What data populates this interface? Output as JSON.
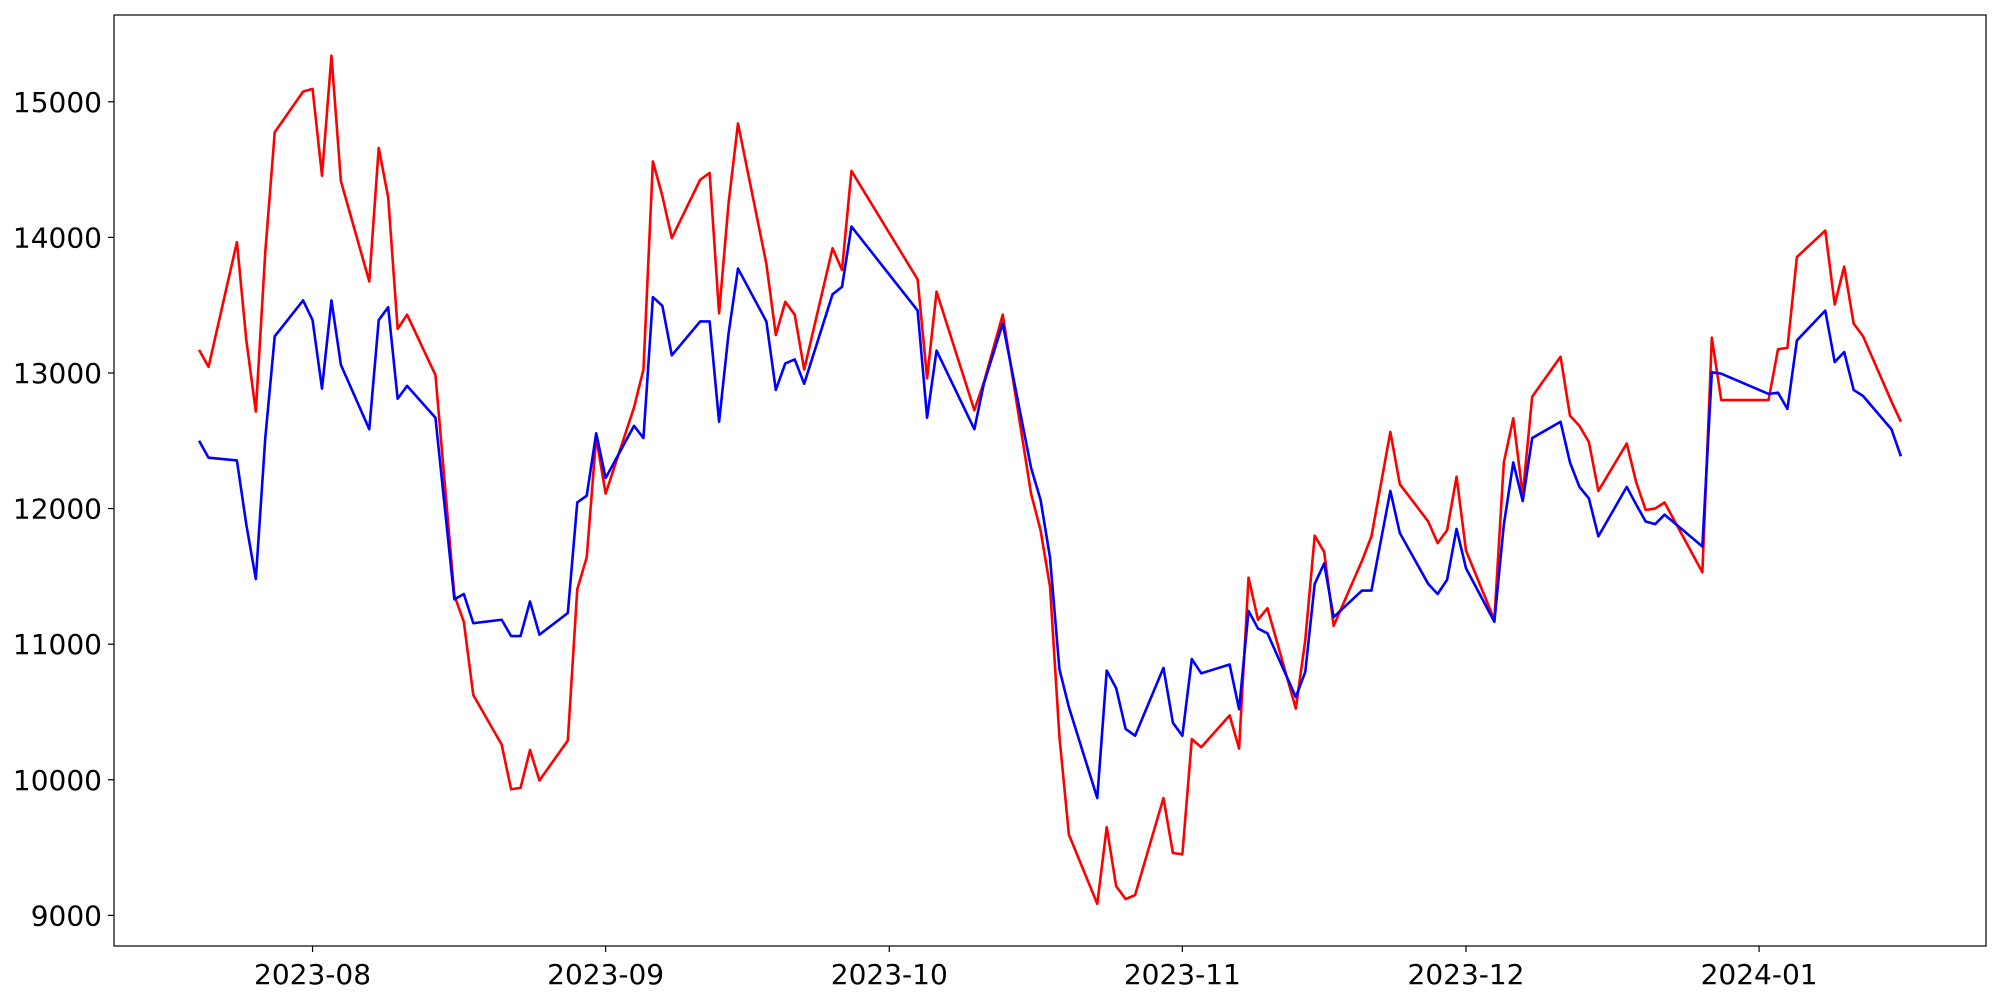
{
  "chart_data": {
    "type": "line",
    "x": [
      "2023-07-20",
      "2023-07-21",
      "2023-07-24",
      "2023-07-25",
      "2023-07-26",
      "2023-07-27",
      "2023-07-28",
      "2023-07-31",
      "2023-08-01",
      "2023-08-02",
      "2023-08-03",
      "2023-08-04",
      "2023-08-07",
      "2023-08-08",
      "2023-08-09",
      "2023-08-10",
      "2023-08-11",
      "2023-08-14",
      "2023-08-16",
      "2023-08-17",
      "2023-08-18",
      "2023-08-21",
      "2023-08-22",
      "2023-08-23",
      "2023-08-24",
      "2023-08-25",
      "2023-08-28",
      "2023-08-29",
      "2023-08-30",
      "2023-08-31",
      "2023-09-01",
      "2023-09-04",
      "2023-09-05",
      "2023-09-06",
      "2023-09-07",
      "2023-09-08",
      "2023-09-11",
      "2023-09-12",
      "2023-09-13",
      "2023-09-14",
      "2023-09-15",
      "2023-09-18",
      "2023-09-19",
      "2023-09-20",
      "2023-09-21",
      "2023-09-22",
      "2023-09-25",
      "2023-09-26",
      "2023-09-27",
      "2023-10-04",
      "2023-10-05",
      "2023-10-06",
      "2023-10-10",
      "2023-10-11",
      "2023-10-13",
      "2023-10-16",
      "2023-10-17",
      "2023-10-18",
      "2023-10-19",
      "2023-10-20",
      "2023-10-23",
      "2023-10-24",
      "2023-10-25",
      "2023-10-26",
      "2023-10-27",
      "2023-10-30",
      "2023-10-31",
      "2023-11-01",
      "2023-11-02",
      "2023-11-03",
      "2023-11-06",
      "2023-11-07",
      "2023-11-08",
      "2023-11-09",
      "2023-11-10",
      "2023-11-13",
      "2023-11-14",
      "2023-11-15",
      "2023-11-16",
      "2023-11-17",
      "2023-11-20",
      "2023-11-21",
      "2023-11-22",
      "2023-11-23",
      "2023-11-24",
      "2023-11-27",
      "2023-11-28",
      "2023-11-29",
      "2023-11-30",
      "2023-12-01",
      "2023-12-04",
      "2023-12-05",
      "2023-12-06",
      "2023-12-07",
      "2023-12-08",
      "2023-12-11",
      "2023-12-12",
      "2023-12-13",
      "2023-12-14",
      "2023-12-15",
      "2023-12-18",
      "2023-12-19",
      "2023-12-20",
      "2023-12-21",
      "2023-12-22",
      "2023-12-26",
      "2023-12-27",
      "2023-12-28",
      "2024-01-02",
      "2024-01-03",
      "2024-01-04",
      "2024-01-05",
      "2024-01-08",
      "2024-01-09",
      "2024-01-10",
      "2024-01-11",
      "2024-01-12",
      "2024-01-15",
      "2024-01-16"
    ],
    "series": [
      {
        "color": "#ff0000",
        "values": [
          13170,
          13045,
          13965,
          13240,
          12715,
          13890,
          14775,
          15075,
          15095,
          14455,
          15340,
          14415,
          13675,
          14660,
          14295,
          13325,
          13430,
          12985,
          11360,
          11165,
          10625,
          10260,
          9930,
          9940,
          10220,
          9995,
          10290,
          11405,
          11640,
          12525,
          12110,
          12745,
          13025,
          14560,
          14305,
          13995,
          14425,
          14475,
          13440,
          14250,
          14840,
          13805,
          13280,
          13525,
          13430,
          13025,
          13920,
          13760,
          14490,
          13690,
          12960,
          13600,
          12725,
          12930,
          13430,
          12110,
          11840,
          11425,
          10315,
          9595,
          9085,
          9650,
          9215,
          9120,
          9150,
          9865,
          9460,
          9450,
          10300,
          10240,
          10475,
          10230,
          11490,
          11180,
          11265,
          10525,
          11030,
          11800,
          11680,
          11135,
          11615,
          11795,
          12180,
          12565,
          12180,
          11905,
          11745,
          11840,
          12235,
          11690,
          11180,
          12340,
          12665,
          12100,
          12825,
          13120,
          12685,
          12610,
          12490,
          12130,
          12480,
          12195,
          11990,
          12000,
          12045,
          11530,
          13260,
          12800,
          12800,
          13175,
          13185,
          13855,
          14050,
          13505,
          13785,
          13365,
          13270,
          12790,
          12640
        ]
      },
      {
        "color": "#0000ff",
        "values": [
          12500,
          12375,
          12355,
          11880,
          11480,
          12520,
          13270,
          13535,
          13390,
          12885,
          13535,
          13060,
          12585,
          13390,
          13485,
          12810,
          12905,
          12670,
          11330,
          11370,
          11155,
          11180,
          11060,
          11060,
          11315,
          11070,
          11230,
          12045,
          12095,
          12555,
          12225,
          12610,
          12520,
          13560,
          13495,
          13130,
          13380,
          13380,
          12640,
          13290,
          13770,
          13380,
          12875,
          13070,
          13100,
          12920,
          13580,
          13635,
          14080,
          13460,
          12670,
          13165,
          12585,
          12920,
          13365,
          12300,
          12065,
          11640,
          10815,
          10535,
          9865,
          10805,
          10675,
          10375,
          10325,
          10825,
          10420,
          10325,
          10890,
          10785,
          10850,
          10520,
          11245,
          11115,
          11080,
          10610,
          10795,
          11445,
          11595,
          11200,
          11395,
          11395,
          11765,
          12130,
          11820,
          11445,
          11370,
          11475,
          11850,
          11560,
          11165,
          11880,
          12340,
          12055,
          12520,
          12640,
          12340,
          12160,
          12075,
          11795,
          12160,
          12030,
          11905,
          11885,
          11955,
          11720,
          13005,
          12995,
          12845,
          12855,
          12735,
          13240,
          13460,
          13080,
          13155,
          12875,
          12830,
          12585,
          12385
        ]
      }
    ],
    "xlim": [
      "2023-07-11",
      "2024-01-25"
    ],
    "xticks": [
      {
        "value": "2023-08-01",
        "label": "2023-08"
      },
      {
        "value": "2023-09-01",
        "label": "2023-09"
      },
      {
        "value": "2023-10-01",
        "label": "2023-10"
      },
      {
        "value": "2023-11-01",
        "label": "2023-11"
      },
      {
        "value": "2023-12-01",
        "label": "2023-12"
      },
      {
        "value": "2024-01-01",
        "label": "2024-01"
      }
    ],
    "ylim": [
      8774,
      15640
    ],
    "yticks": [
      9000,
      10000,
      11000,
      12000,
      13000,
      14000,
      15000
    ],
    "grid": false
  }
}
